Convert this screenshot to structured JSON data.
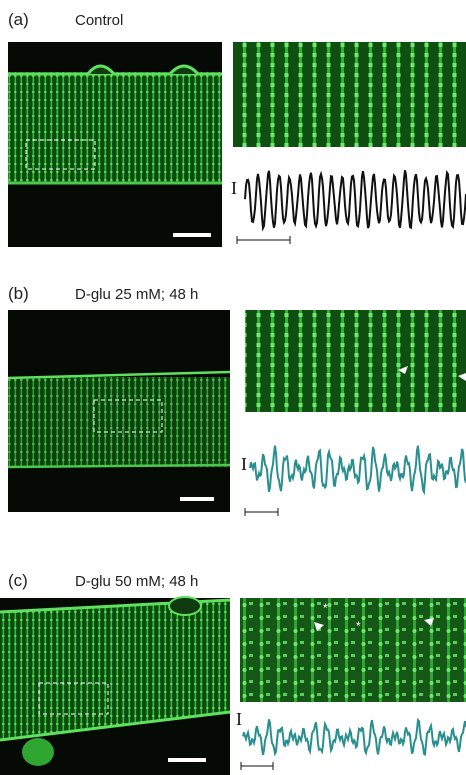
{
  "panels": [
    {
      "label": "(a)",
      "title": "Control",
      "axis_label": "I"
    },
    {
      "label": "(b)",
      "title": "D-glu 25 mM; 48 h",
      "axis_label": "I"
    },
    {
      "label": "(c)",
      "title": "D-glu 50 mM; 48 h",
      "axis_label": "I",
      "annotations": [
        "*",
        "*"
      ]
    }
  ]
}
